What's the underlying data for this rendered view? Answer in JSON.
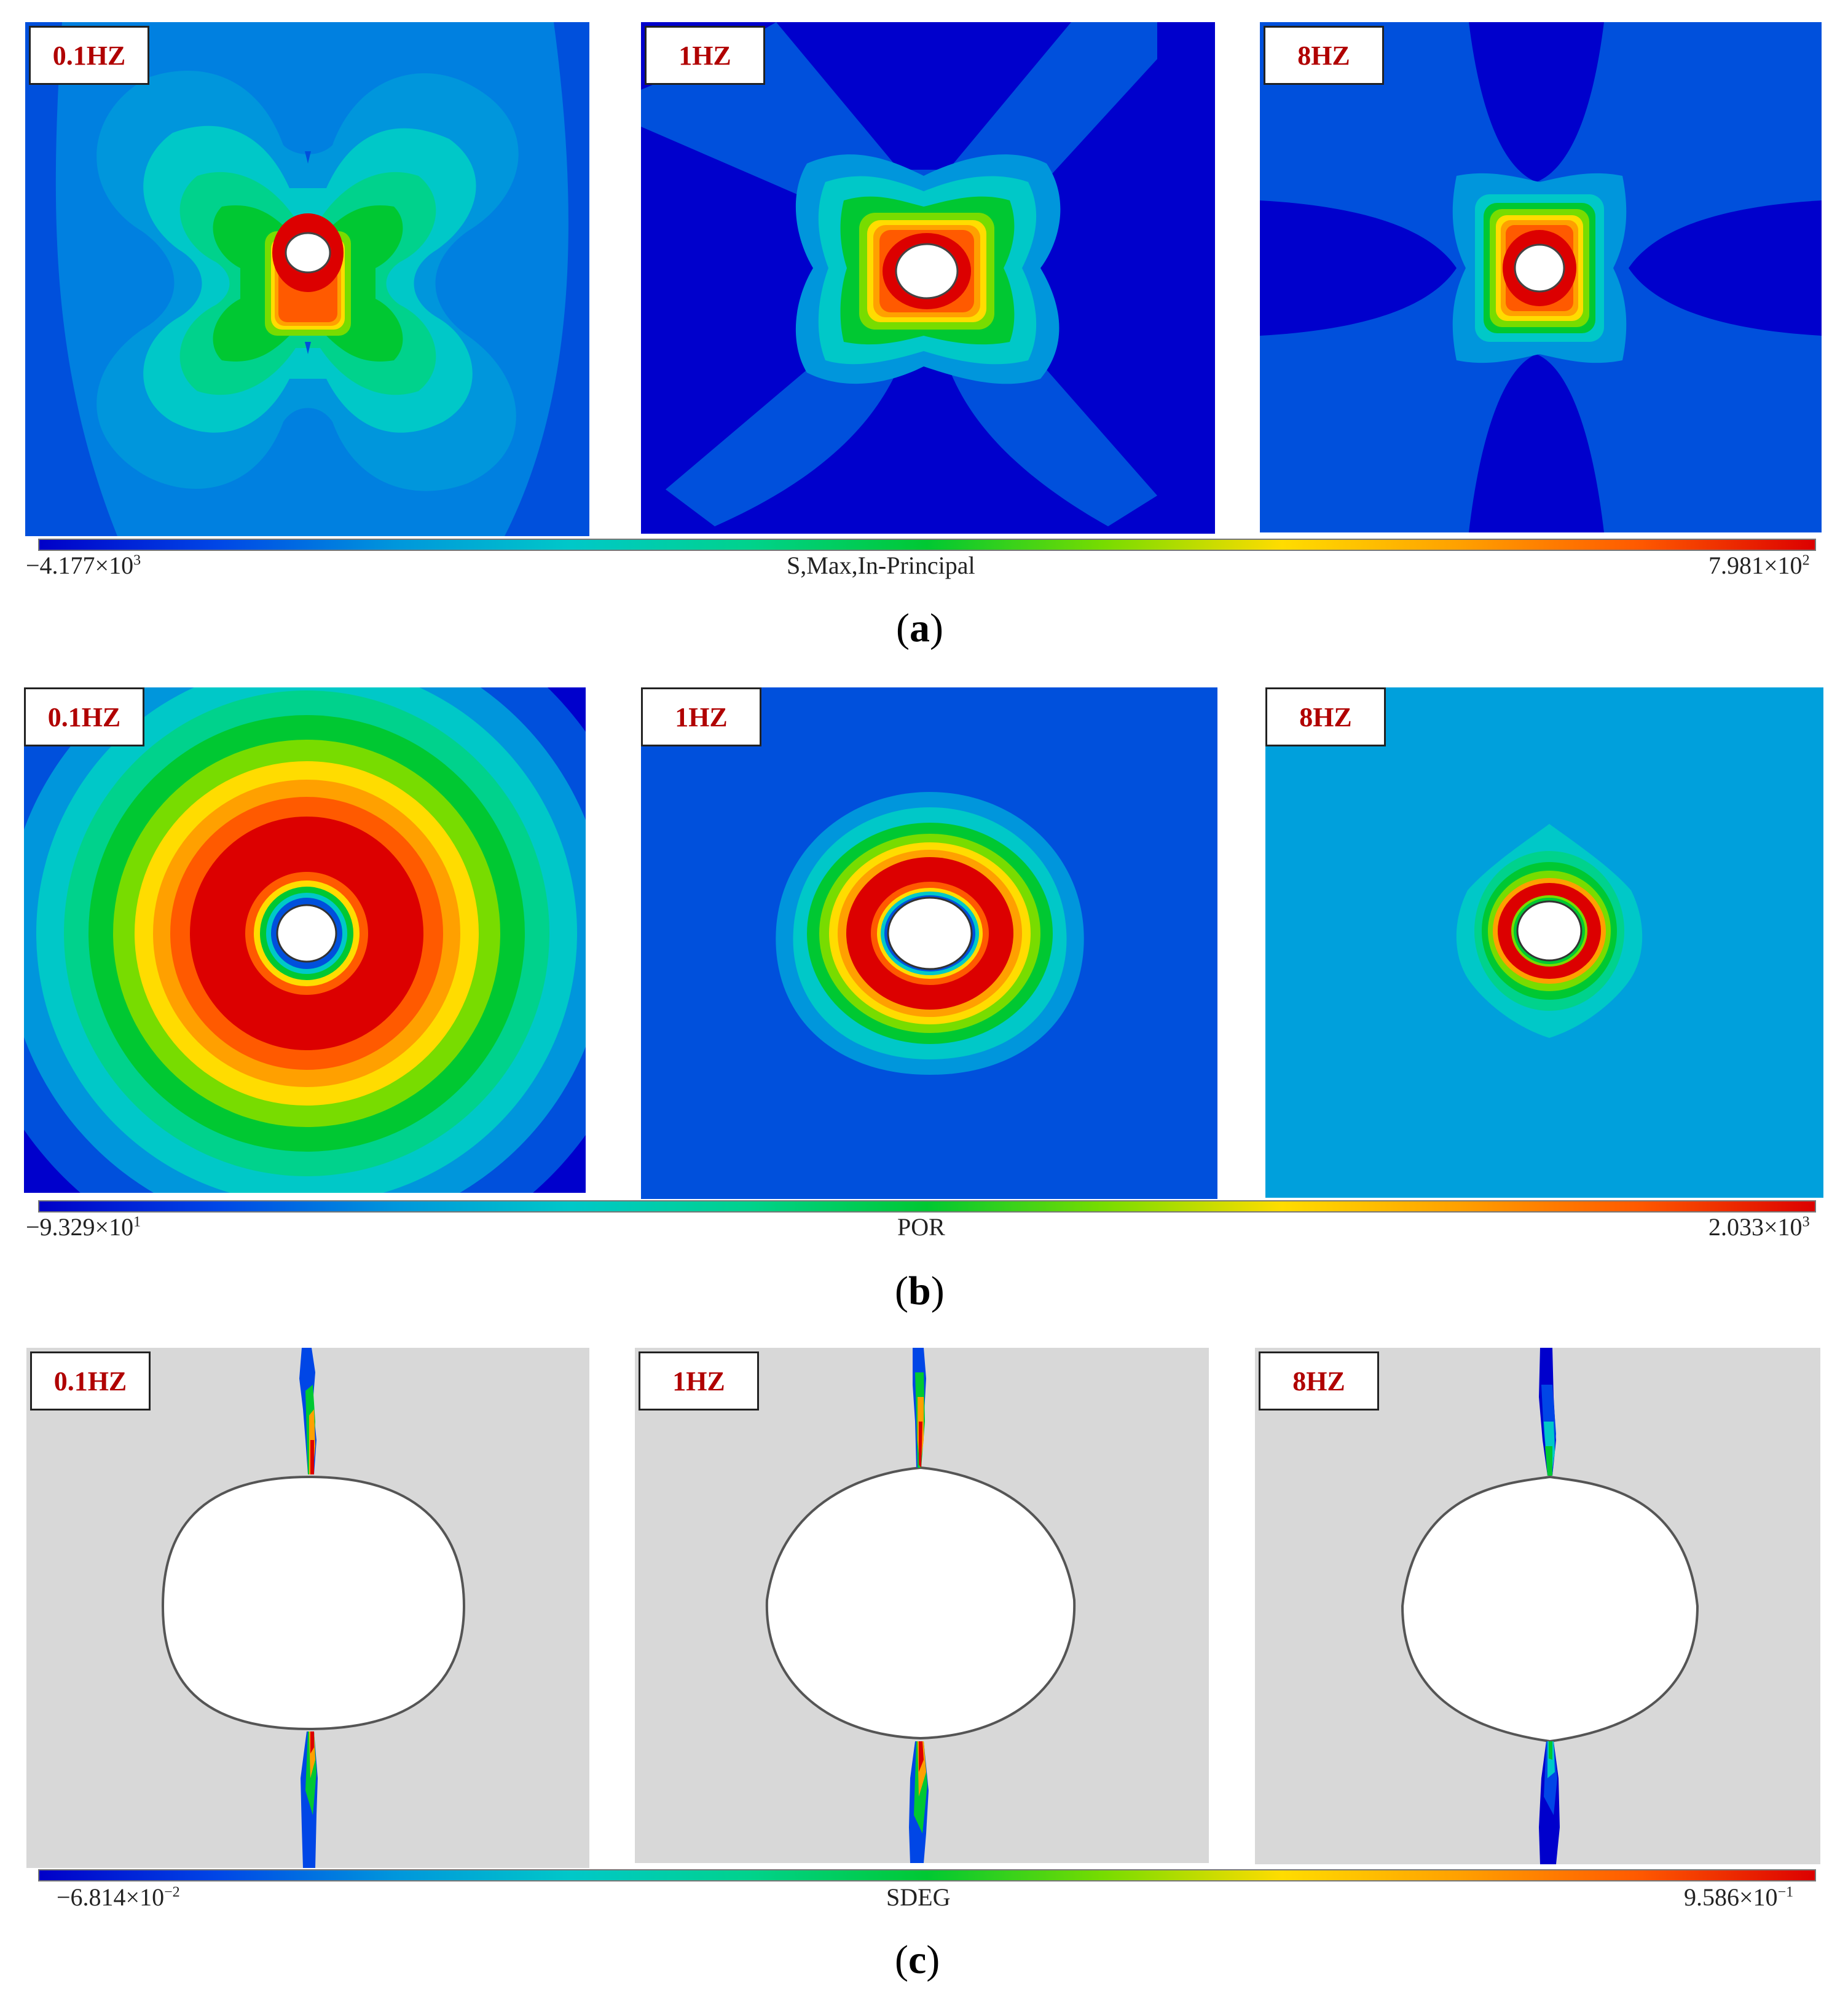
{
  "rows": [
    {
      "id": "a",
      "panels": [
        {
          "label": "0.1HZ"
        },
        {
          "label": "1HZ"
        },
        {
          "label": "8HZ"
        }
      ],
      "colorbar": {
        "min_mantissa": "−4.177×10",
        "min_exp": "3",
        "title": "S,Max,In-Principal",
        "max_mantissa": "7.981×10",
        "max_exp": "2"
      },
      "caption": {
        "open": "(",
        "letter": "a",
        "close": ")"
      }
    },
    {
      "id": "b",
      "panels": [
        {
          "label": "0.1HZ"
        },
        {
          "label": "1HZ"
        },
        {
          "label": "8HZ"
        }
      ],
      "colorbar": {
        "min_mantissa": "−9.329×10",
        "min_exp": "1",
        "title": "POR",
        "max_mantissa": "2.033×10",
        "max_exp": "3"
      },
      "caption": {
        "open": "(",
        "letter": "b",
        "close": ")"
      }
    },
    {
      "id": "c",
      "panels": [
        {
          "label": "0.1HZ"
        },
        {
          "label": "1HZ"
        },
        {
          "label": "8HZ"
        }
      ],
      "colorbar": {
        "min_mantissa": "−6.814×10",
        "min_exp": "−2",
        "title": "SDEG",
        "max_mantissa": "9.586×10",
        "max_exp": "−1"
      },
      "caption": {
        "open": "(",
        "letter": "c",
        "close": ")"
      }
    }
  ],
  "colors": {
    "label_text": "#b00000",
    "background_low": "#0000cc",
    "background_mid": "#0050dc",
    "pore_8hz_bg": "#00a0dc",
    "damage_bg": "#d8d8d8",
    "colormap": [
      "#0000c8",
      "#0046e6",
      "#0096dc",
      "#00c8c8",
      "#00d28c",
      "#00c832",
      "#78dc00",
      "#ffdc00",
      "#ffa000",
      "#ff5a00",
      "#dc0000"
    ]
  }
}
